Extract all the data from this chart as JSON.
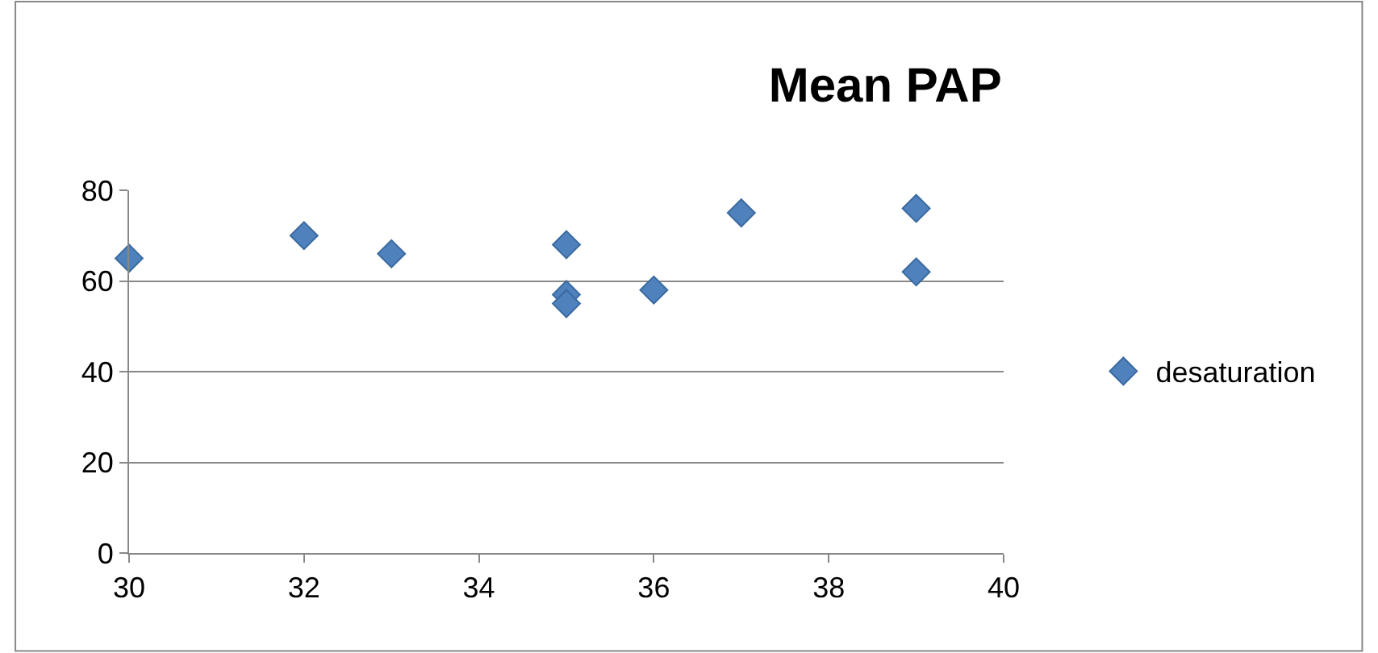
{
  "chart_data": {
    "type": "scatter",
    "title": "Mean PAP",
    "x": [
      30,
      32,
      33,
      35,
      35,
      35,
      36,
      37,
      39,
      39
    ],
    "series": [
      {
        "name": "desaturation",
        "color": "#4f81bd",
        "values": [
          65,
          70,
          66,
          68,
          57,
          55,
          58,
          75,
          76,
          62
        ]
      }
    ],
    "xlim": [
      30,
      40
    ],
    "xticks": [
      30,
      32,
      34,
      36,
      38,
      40
    ],
    "ylim": [
      0,
      80
    ],
    "yticks": [
      0,
      20,
      40,
      60,
      80
    ],
    "grid": "y",
    "legend": "right",
    "marker": "diamond"
  }
}
